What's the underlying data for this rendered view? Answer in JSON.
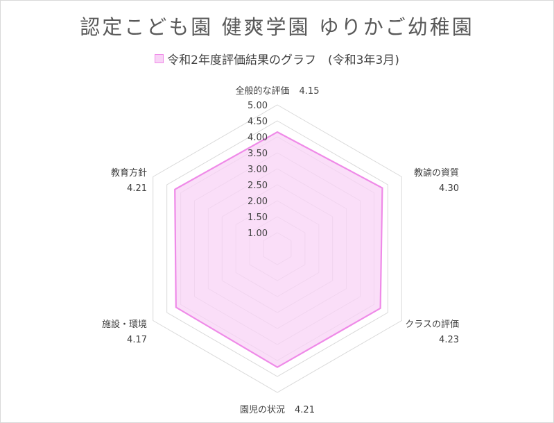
{
  "chart_data": {
    "type": "radar",
    "title": "認定こども園 健爽学園 ゆりかご幼稚園",
    "series": [
      {
        "name": "令和2年度評価結果のグラフ　(令和3年3月)",
        "values": [
          4.15,
          4.3,
          4.23,
          4.21,
          4.17,
          4.21
        ]
      }
    ],
    "categories": [
      "全般的な評価",
      "教諭の資質",
      "クラスの評価",
      "園児の状況",
      "施設・環境",
      "教育方針"
    ],
    "value_labels": [
      "4.15",
      "4.30",
      "4.23",
      "4.21",
      "4.17",
      "4.21"
    ],
    "axis": {
      "min": 0.5,
      "max": 5.0,
      "ticks": [
        "1.00",
        "1.50",
        "2.00",
        "2.50",
        "3.00",
        "3.50",
        "4.00",
        "4.50",
        "5.00"
      ]
    },
    "colors": {
      "fill": "#f8d3f6",
      "stroke": "#ef8ae8",
      "grid": "#d9d9d9"
    },
    "legend_position": "top"
  }
}
